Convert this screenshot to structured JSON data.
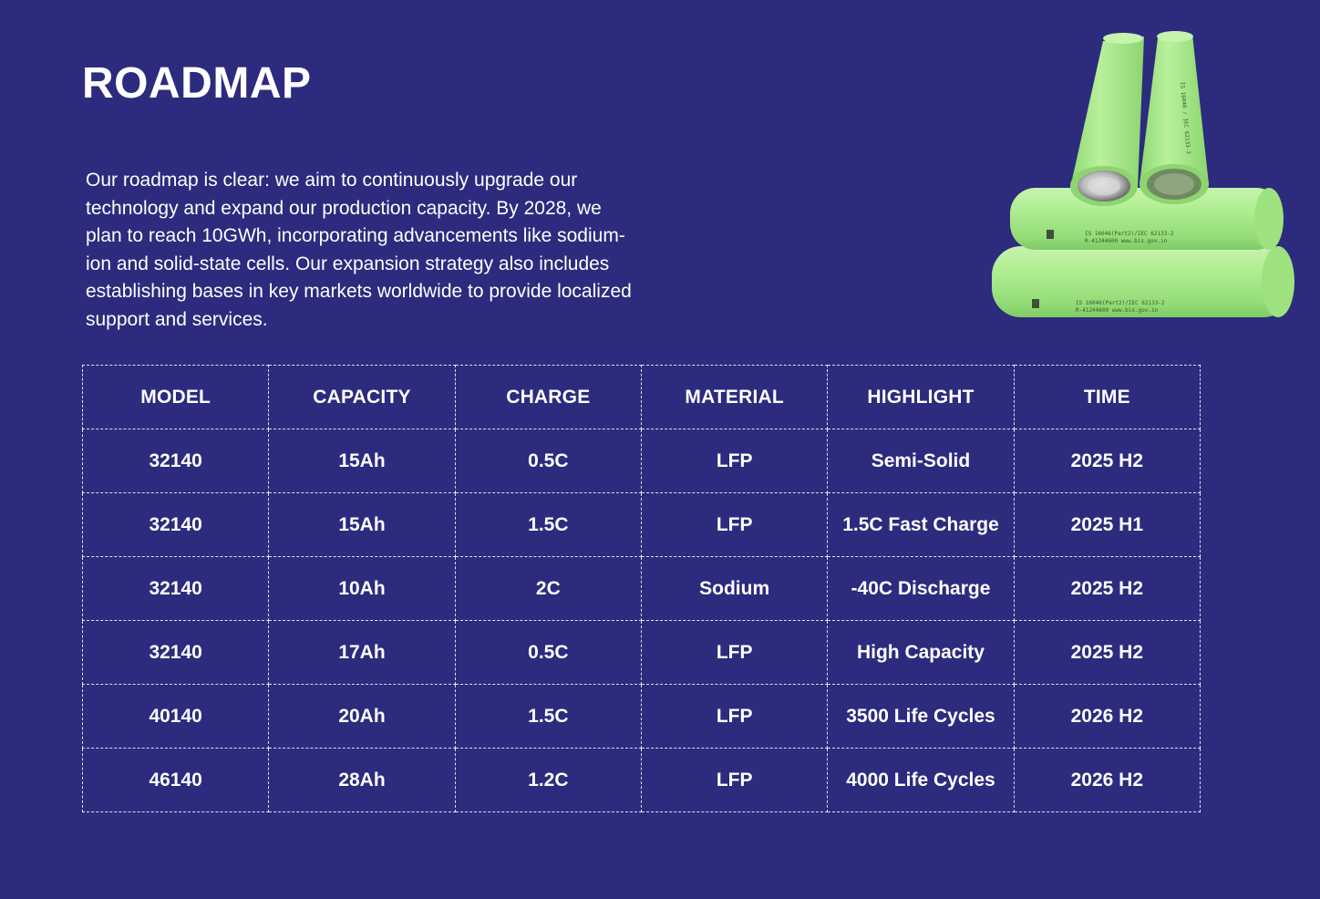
{
  "page": {
    "title": "ROADMAP",
    "intro": "Our roadmap is clear: we aim to continuously upgrade our technology and expand our production capacity. By 2028, we plan to reach 10GWh, incorporating advancements like sodium-ion and solid-state cells. Our expansion strategy also includes establishing bases in key markets worldwide to provide localized support and services."
  },
  "colors": {
    "background": "#2c2b7e",
    "text": "#ffffff",
    "battery_green": "#a6ea86"
  },
  "image": {
    "icon": "cylindrical-battery-cells"
  },
  "table": {
    "headers": [
      "MODEL",
      "CAPACITY",
      "CHARGE",
      "MATERIAL",
      "HIGHLIGHT",
      "TIME"
    ],
    "rows": [
      [
        "32140",
        "15Ah",
        "0.5C",
        "LFP",
        "Semi-Solid",
        "2025 H2"
      ],
      [
        "32140",
        "15Ah",
        "1.5C",
        "LFP",
        "1.5C Fast Charge",
        "2025 H1"
      ],
      [
        "32140",
        "10Ah",
        "2C",
        "Sodium",
        "-40C Discharge",
        "2025 H2"
      ],
      [
        "32140",
        "17Ah",
        "0.5C",
        "LFP",
        "High Capacity",
        "2025 H2"
      ],
      [
        "40140",
        "20Ah",
        "1.5C",
        "LFP",
        "3500 Life Cycles",
        "2026 H2"
      ],
      [
        "46140",
        "28Ah",
        "1.2C",
        "LFP",
        "4000 Life Cycles",
        "2026 H2"
      ]
    ]
  }
}
